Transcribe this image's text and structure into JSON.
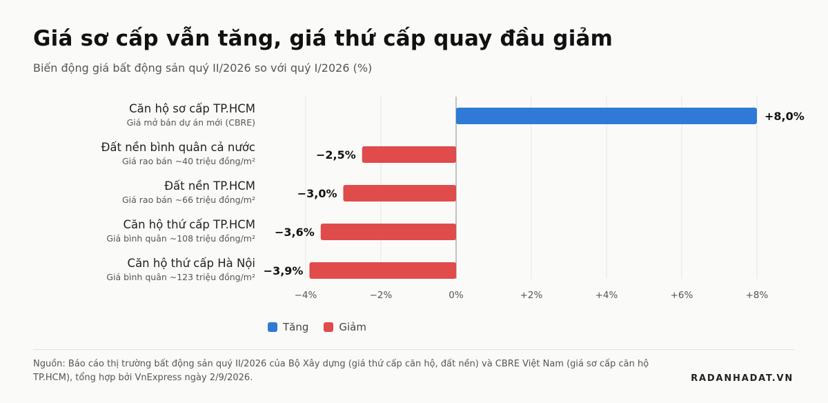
{
  "title": "Giá sơ cấp vẫn tăng, giá thứ cấp quay đầu giảm",
  "subtitle": "Biến động giá bất động sản quý II/2026 so với quý I/2026 (%)",
  "colors": {
    "increase": "#2f7ad6",
    "decrease": "#e04b4b"
  },
  "legend": {
    "increase_label": "Tăng",
    "decrease_label": "Giảm",
    "placement": "bottom"
  },
  "source": "Nguồn: Báo cáo thị trường bất động sản quý II/2026 của Bộ Xây dựng (giá thứ cấp căn hộ, đất nền) và CBRE Việt Nam (giá sơ cấp căn hộ TP.HCM), tổng hợp bởi VnExpress ngày 2/9/2026.",
  "brand": "RADANHADAT.VN",
  "chart_data": {
    "type": "bar",
    "orientation": "horizontal",
    "categories": [
      "Căn hộ sơ cấp TP.HCM",
      "Đất nền bình quân cả nước",
      "Đất nền TP.HCM",
      "Căn hộ thứ cấp TP.HCM",
      "Căn hộ thứ cấp Hà Nội"
    ],
    "category_notes": [
      "Giá mở bán dự án mới (CBRE)",
      "Giá rao bán ~40 triệu đồng/m²",
      "Giá rao bán ~66 triệu đồng/m²",
      "Giá bình quân ~108 triệu đồng/m²",
      "Giá bình quân ~123 triệu đồng/m²"
    ],
    "values": [
      8.0,
      -2.5,
      -3.0,
      -3.6,
      -3.9
    ],
    "value_labels": [
      "+8,0%",
      "−2,5%",
      "−3,0%",
      "−3,6%",
      "−3,9%"
    ],
    "xlim": [
      -4,
      8
    ],
    "xticks": [
      -4,
      -2,
      0,
      2,
      4,
      6,
      8
    ],
    "xtick_labels": [
      "−4%",
      "−2%",
      "0%",
      "+2%",
      "+4%",
      "+6%",
      "+8%"
    ],
    "grid": true
  }
}
